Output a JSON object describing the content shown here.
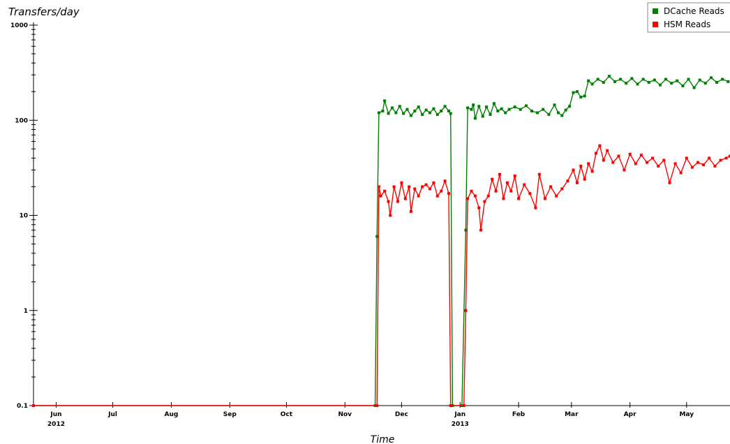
{
  "chart_data": {
    "type": "line",
    "title": "",
    "ylabel": "Transfers/day",
    "xlabel": "Time",
    "yscale": "log",
    "ylim": [
      0.1,
      1000
    ],
    "xlim": [
      "2012-05-20",
      "2013-05-24"
    ],
    "y_ticks": [
      {
        "value": 1000,
        "label": "1000"
      },
      {
        "value": 100,
        "label": "100"
      },
      {
        "value": 10,
        "label": "10"
      },
      {
        "value": 1,
        "label": "1"
      },
      {
        "value": 0.1,
        "label": "0.1"
      }
    ],
    "x_ticks": [
      {
        "date": "2012-06-01",
        "label": "Jun",
        "sublabel": "2012"
      },
      {
        "date": "2012-07-01",
        "label": "Jul",
        "sublabel": ""
      },
      {
        "date": "2012-08-01",
        "label": "Aug",
        "sublabel": ""
      },
      {
        "date": "2012-09-01",
        "label": "Sep",
        "sublabel": ""
      },
      {
        "date": "2012-10-01",
        "label": "Oct",
        "sublabel": ""
      },
      {
        "date": "2012-11-01",
        "label": "Nov",
        "sublabel": ""
      },
      {
        "date": "2012-12-01",
        "label": "Dec",
        "sublabel": ""
      },
      {
        "date": "2013-01-01",
        "label": "Jan",
        "sublabel": "2013"
      },
      {
        "date": "2013-02-01",
        "label": "Feb",
        "sublabel": ""
      },
      {
        "date": "2013-03-01",
        "label": "Mar",
        "sublabel": ""
      },
      {
        "date": "2013-04-01",
        "label": "Apr",
        "sublabel": ""
      },
      {
        "date": "2013-05-01",
        "label": "May",
        "sublabel": ""
      }
    ],
    "legend_position": "top-right",
    "grid": false,
    "series": [
      {
        "name": "DCache Reads",
        "color": "#008000",
        "points": [
          [
            "2012-05-20",
            0.1
          ],
          [
            "2012-11-17",
            0.1
          ],
          [
            "2012-11-18",
            6
          ],
          [
            "2012-11-19",
            120
          ],
          [
            "2012-11-21",
            125
          ],
          [
            "2012-11-22",
            160
          ],
          [
            "2012-11-24",
            118
          ],
          [
            "2012-11-26",
            135
          ],
          [
            "2012-11-28",
            120
          ],
          [
            "2012-11-30",
            140
          ],
          [
            "2012-12-02",
            118
          ],
          [
            "2012-12-04",
            130
          ],
          [
            "2012-12-06",
            112
          ],
          [
            "2012-12-08",
            125
          ],
          [
            "2012-12-10",
            138
          ],
          [
            "2012-12-12",
            115
          ],
          [
            "2012-12-14",
            128
          ],
          [
            "2012-12-16",
            120
          ],
          [
            "2012-12-18",
            132
          ],
          [
            "2012-12-20",
            115
          ],
          [
            "2012-12-22",
            125
          ],
          [
            "2012-12-24",
            140
          ],
          [
            "2012-12-26",
            125
          ],
          [
            "2012-12-27",
            118
          ],
          [
            "2012-12-28",
            0.1
          ],
          [
            "2013-01-02",
            0.1
          ],
          [
            "2013-01-04",
            7
          ],
          [
            "2013-01-05",
            135
          ],
          [
            "2013-01-07",
            130
          ],
          [
            "2013-01-08",
            145
          ],
          [
            "2013-01-09",
            105
          ],
          [
            "2013-01-11",
            140
          ],
          [
            "2013-01-13",
            110
          ],
          [
            "2013-01-15",
            138
          ],
          [
            "2013-01-17",
            115
          ],
          [
            "2013-01-19",
            150
          ],
          [
            "2013-01-21",
            125
          ],
          [
            "2013-01-23",
            132
          ],
          [
            "2013-01-25",
            120
          ],
          [
            "2013-01-27",
            130
          ],
          [
            "2013-01-30",
            138
          ],
          [
            "2013-02-02",
            130
          ],
          [
            "2013-02-05",
            142
          ],
          [
            "2013-02-08",
            125
          ],
          [
            "2013-02-11",
            120
          ],
          [
            "2013-02-14",
            130
          ],
          [
            "2013-02-17",
            115
          ],
          [
            "2013-02-20",
            145
          ],
          [
            "2013-02-22",
            120
          ],
          [
            "2013-02-24",
            112
          ],
          [
            "2013-02-26",
            128
          ],
          [
            "2013-02-28",
            140
          ],
          [
            "2013-03-02",
            195
          ],
          [
            "2013-03-04",
            200
          ],
          [
            "2013-03-06",
            175
          ],
          [
            "2013-03-08",
            180
          ],
          [
            "2013-03-10",
            260
          ],
          [
            "2013-03-12",
            240
          ],
          [
            "2013-03-15",
            270
          ],
          [
            "2013-03-18",
            250
          ],
          [
            "2013-03-21",
            290
          ],
          [
            "2013-03-24",
            255
          ],
          [
            "2013-03-27",
            270
          ],
          [
            "2013-03-30",
            245
          ],
          [
            "2013-04-02",
            275
          ],
          [
            "2013-04-05",
            240
          ],
          [
            "2013-04-08",
            270
          ],
          [
            "2013-04-11",
            250
          ],
          [
            "2013-04-14",
            265
          ],
          [
            "2013-04-17",
            235
          ],
          [
            "2013-04-20",
            270
          ],
          [
            "2013-04-23",
            245
          ],
          [
            "2013-04-26",
            260
          ],
          [
            "2013-04-29",
            230
          ],
          [
            "2013-05-02",
            270
          ],
          [
            "2013-05-05",
            220
          ],
          [
            "2013-05-08",
            265
          ],
          [
            "2013-05-11",
            245
          ],
          [
            "2013-05-14",
            280
          ],
          [
            "2013-05-17",
            250
          ],
          [
            "2013-05-20",
            270
          ],
          [
            "2013-05-23",
            255
          ]
        ]
      },
      {
        "name": "HSM Reads",
        "color": "#ff0000",
        "points": [
          [
            "2012-05-20",
            0.1
          ],
          [
            "2012-11-18",
            0.1
          ],
          [
            "2012-11-19",
            20
          ],
          [
            "2012-11-20",
            16
          ],
          [
            "2012-11-22",
            18
          ],
          [
            "2012-11-24",
            14
          ],
          [
            "2012-11-25",
            10
          ],
          [
            "2012-11-27",
            20
          ],
          [
            "2012-11-29",
            14
          ],
          [
            "2012-12-01",
            22
          ],
          [
            "2012-12-03",
            15
          ],
          [
            "2012-12-05",
            20
          ],
          [
            "2012-12-06",
            11
          ],
          [
            "2012-12-08",
            19
          ],
          [
            "2012-12-10",
            16
          ],
          [
            "2012-12-12",
            20
          ],
          [
            "2012-12-14",
            21
          ],
          [
            "2012-12-16",
            19
          ],
          [
            "2012-12-18",
            22
          ],
          [
            "2012-12-20",
            16
          ],
          [
            "2012-12-22",
            18
          ],
          [
            "2012-12-24",
            23
          ],
          [
            "2012-12-26",
            17
          ],
          [
            "2012-12-27",
            0.1
          ],
          [
            "2013-01-03",
            0.1
          ],
          [
            "2013-01-04",
            1
          ],
          [
            "2013-01-05",
            15
          ],
          [
            "2013-01-07",
            18
          ],
          [
            "2013-01-09",
            16
          ],
          [
            "2013-01-11",
            12
          ],
          [
            "2013-01-12",
            7
          ],
          [
            "2013-01-14",
            14
          ],
          [
            "2013-01-16",
            16
          ],
          [
            "2013-01-18",
            24
          ],
          [
            "2013-01-20",
            18
          ],
          [
            "2013-01-22",
            27
          ],
          [
            "2013-01-24",
            15
          ],
          [
            "2013-01-26",
            22
          ],
          [
            "2013-01-28",
            18
          ],
          [
            "2013-01-30",
            26
          ],
          [
            "2013-02-01",
            15
          ],
          [
            "2013-02-04",
            21
          ],
          [
            "2013-02-07",
            17
          ],
          [
            "2013-02-10",
            12
          ],
          [
            "2013-02-12",
            27
          ],
          [
            "2013-02-15",
            15
          ],
          [
            "2013-02-18",
            20
          ],
          [
            "2013-02-21",
            16
          ],
          [
            "2013-02-24",
            19
          ],
          [
            "2013-02-27",
            23
          ],
          [
            "2013-03-02",
            30
          ],
          [
            "2013-03-04",
            22
          ],
          [
            "2013-03-06",
            33
          ],
          [
            "2013-03-08",
            24
          ],
          [
            "2013-03-10",
            35
          ],
          [
            "2013-03-12",
            29
          ],
          [
            "2013-03-14",
            45
          ],
          [
            "2013-03-16",
            54
          ],
          [
            "2013-03-18",
            38
          ],
          [
            "2013-03-20",
            48
          ],
          [
            "2013-03-23",
            36
          ],
          [
            "2013-03-26",
            42
          ],
          [
            "2013-03-29",
            30
          ],
          [
            "2013-04-01",
            44
          ],
          [
            "2013-04-04",
            35
          ],
          [
            "2013-04-07",
            43
          ],
          [
            "2013-04-10",
            36
          ],
          [
            "2013-04-13",
            40
          ],
          [
            "2013-04-16",
            33
          ],
          [
            "2013-04-19",
            38
          ],
          [
            "2013-04-22",
            22
          ],
          [
            "2013-04-25",
            35
          ],
          [
            "2013-04-28",
            28
          ],
          [
            "2013-05-01",
            40
          ],
          [
            "2013-05-04",
            32
          ],
          [
            "2013-05-07",
            36
          ],
          [
            "2013-05-10",
            34
          ],
          [
            "2013-05-13",
            40
          ],
          [
            "2013-05-16",
            33
          ],
          [
            "2013-05-19",
            38
          ],
          [
            "2013-05-22",
            40
          ],
          [
            "2013-05-24",
            42
          ]
        ]
      }
    ]
  }
}
